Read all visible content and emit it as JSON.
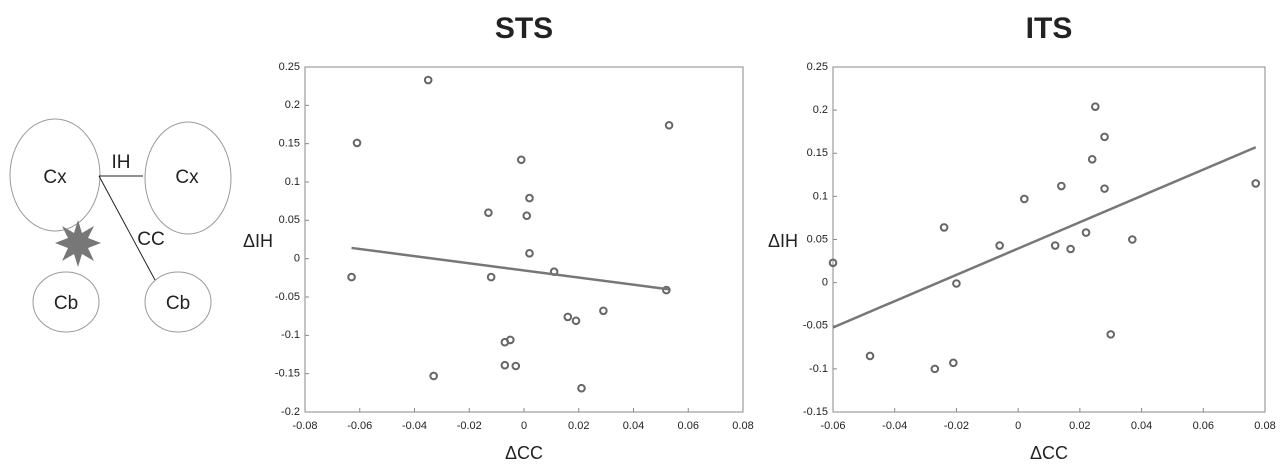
{
  "diagram": {
    "labels": [
      "Cx",
      "IH",
      "Cx",
      "CC",
      "Cb",
      "Cb"
    ]
  },
  "chart_data": [
    {
      "type": "scatter",
      "title": "STS",
      "x_label": "ΔCC",
      "y_label": "ΔIH",
      "xlim": [
        -0.08,
        0.08
      ],
      "xticks": [
        -0.08,
        -0.06,
        -0.04,
        -0.02,
        0,
        0.02,
        0.04,
        0.06,
        0.08
      ],
      "ylim": [
        -0.2,
        0.25
      ],
      "yticks": [
        -0.2,
        -0.15,
        -0.1,
        -0.05,
        0,
        0.05,
        0.1,
        0.15,
        0.2,
        0.25
      ],
      "marker_color": "#666666",
      "line_color": "#777777",
      "x": [
        -0.035,
        -0.061,
        0.053,
        -0.001,
        0.002,
        0.001,
        -0.013,
        0.002,
        0.011,
        -0.012,
        -0.063,
        0.052,
        0.029,
        0.016,
        0.019,
        -0.005,
        -0.007,
        -0.007,
        -0.003,
        0.021,
        -0.033
      ],
      "y": [
        0.233,
        0.151,
        0.174,
        0.129,
        0.079,
        0.056,
        0.06,
        0.007,
        -0.017,
        -0.024,
        -0.024,
        -0.041,
        -0.068,
        -0.076,
        -0.081,
        -0.106,
        -0.109,
        -0.139,
        -0.14,
        -0.169,
        -0.153
      ],
      "fit": {
        "x": [
          -0.063,
          0.053
        ],
        "y": [
          0.014,
          -0.04
        ]
      }
    },
    {
      "type": "scatter",
      "title": "ITS",
      "x_label": "ΔCC",
      "y_label": "ΔIH",
      "xlim": [
        -0.06,
        0.08
      ],
      "xticks": [
        -0.06,
        -0.04,
        -0.02,
        0,
        0.02,
        0.04,
        0.06,
        0.08
      ],
      "ylim": [
        -0.15,
        0.25
      ],
      "yticks": [
        -0.15,
        -0.1,
        -0.05,
        0,
        0.05,
        0.1,
        0.15,
        0.2,
        0.25
      ],
      "marker_color": "#666666",
      "line_color": "#777777",
      "x": [
        -0.06,
        -0.048,
        -0.027,
        -0.021,
        -0.024,
        -0.02,
        -0.006,
        0.002,
        0.012,
        0.014,
        0.017,
        0.022,
        0.024,
        0.025,
        0.028,
        0.028,
        0.03,
        0.037,
        0.077
      ],
      "y": [
        0.023,
        -0.085,
        -0.1,
        -0.093,
        0.064,
        -0.001,
        0.043,
        0.097,
        0.043,
        0.112,
        0.039,
        0.058,
        0.143,
        0.204,
        0.169,
        0.109,
        -0.06,
        0.05,
        0.115
      ],
      "fit": {
        "x": [
          -0.06,
          0.077
        ],
        "y": [
          -0.052,
          0.157
        ]
      }
    }
  ]
}
